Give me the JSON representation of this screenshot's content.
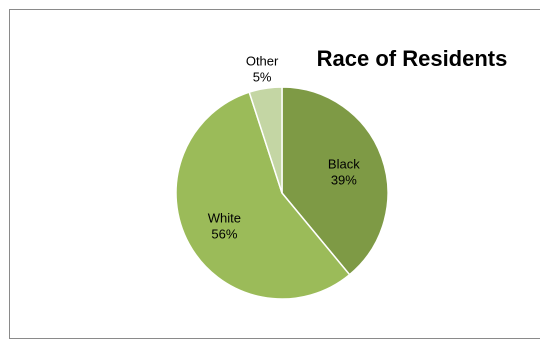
{
  "chart_data": {
    "type": "pie",
    "title": "Race of Residents",
    "categories": [
      "Black",
      "White",
      "Other"
    ],
    "values": [
      39,
      56,
      5
    ],
    "value_labels": [
      "39%",
      "56%",
      "5%"
    ],
    "colors": [
      "#7e9a45",
      "#9bbb59",
      "#c4d6a4"
    ],
    "start_angle_deg": 0,
    "direction": "clockwise",
    "legend": "none",
    "data_labels": "category and percentage"
  }
}
